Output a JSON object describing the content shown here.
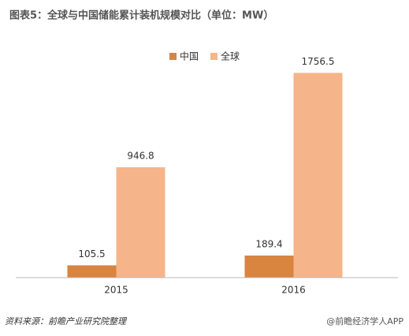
{
  "chart_data": {
    "type": "bar",
    "title": "图表5：全球与中国储能累计装机规模对比（单位：MW）",
    "categories": [
      "2015",
      "2016"
    ],
    "series": [
      {
        "name": "中国",
        "color": "#d9843f",
        "values": [
          105.5,
          189.4
        ]
      },
      {
        "name": "全球",
        "color": "#f5b48a",
        "values": [
          946.8,
          1756.5
        ]
      }
    ],
    "ylim": [
      0,
      1800
    ],
    "legend": "top",
    "source": "资料来源：前瞻产业研究院整理",
    "credit": "@前瞻经济学人APP"
  }
}
